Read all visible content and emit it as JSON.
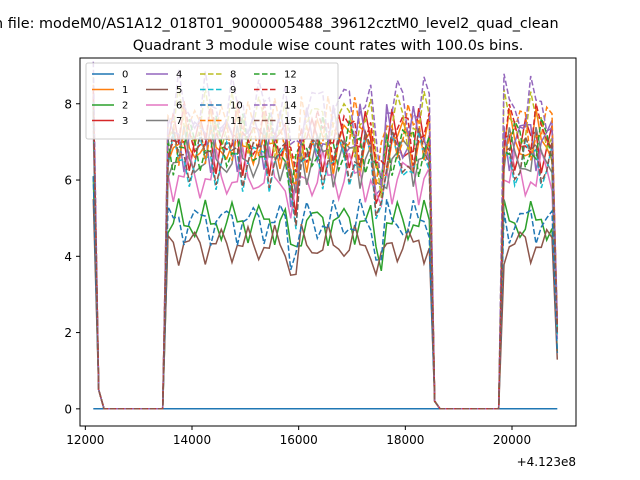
{
  "figure": {
    "suptitle": "n file: modeM0/AS1A12_018T01_9000005488_39612cztM0_level2_quad_clean",
    "axis_offset_label": "+4.123e8"
  },
  "chart_data": {
    "type": "line",
    "title": "Quadrant 3 module wise count rates with 100.0s bins.",
    "xlabel": "",
    "ylabel": "",
    "xlim": [
      11900,
      21200
    ],
    "ylim": [
      -0.45,
      9.2
    ],
    "x_offset": 412300000,
    "x_ticks": [
      12000,
      14000,
      16000,
      18000,
      20000
    ],
    "x_tick_labels": [
      "12000",
      "14000",
      "16000",
      "18000",
      "20000"
    ],
    "y_ticks": [
      0,
      2,
      4,
      6,
      8
    ],
    "y_tick_labels": [
      "0",
      "2",
      "4",
      "6",
      "8"
    ],
    "legend": {
      "placement": "top-left",
      "columns": 4
    },
    "grid": false,
    "segments": [
      {
        "start": 12150,
        "end": 12350,
        "kind": "drop_edge"
      },
      {
        "start": 12350,
        "end": 13450,
        "kind": "gap"
      },
      {
        "start": 13450,
        "end": 18550,
        "kind": "active"
      },
      {
        "start": 18550,
        "end": 19750,
        "kind": "gap"
      },
      {
        "start": 19750,
        "end": 20850,
        "kind": "active"
      }
    ],
    "series": [
      {
        "name": "0",
        "color": "#1f77b4",
        "dash": "solid",
        "level": 0.0
      },
      {
        "name": "1",
        "color": "#ff7f0e",
        "dash": "solid",
        "level": 7.0
      },
      {
        "name": "2",
        "color": "#2ca02c",
        "dash": "solid",
        "level": 4.9
      },
      {
        "name": "3",
        "color": "#d62728",
        "dash": "solid",
        "level": 7.0
      },
      {
        "name": "4",
        "color": "#9467bd",
        "dash": "solid",
        "level": 7.1
      },
      {
        "name": "5",
        "color": "#8c564b",
        "dash": "solid",
        "level": 4.3
      },
      {
        "name": "6",
        "color": "#e377c2",
        "dash": "solid",
        "level": 6.1
      },
      {
        "name": "7",
        "color": "#7f7f7f",
        "dash": "solid",
        "level": 6.6
      },
      {
        "name": "8",
        "color": "#bcbd22",
        "dash": "dashed",
        "level": 7.5
      },
      {
        "name": "9",
        "color": "#17becf",
        "dash": "dashed",
        "level": 6.5
      },
      {
        "name": "10",
        "color": "#1f77b4",
        "dash": "dashed",
        "level": 4.9
      },
      {
        "name": "11",
        "color": "#ff7f0e",
        "dash": "dashed",
        "level": 7.3
      },
      {
        "name": "12",
        "color": "#2ca02c",
        "dash": "dashed",
        "level": 6.9
      },
      {
        "name": "13",
        "color": "#d62728",
        "dash": "dashed",
        "level": 7.2
      },
      {
        "name": "14",
        "color": "#9467bd",
        "dash": "dashed",
        "level": 7.9
      },
      {
        "name": "15",
        "color": "#8c564b",
        "dash": "dashed",
        "level": 6.6
      }
    ]
  }
}
